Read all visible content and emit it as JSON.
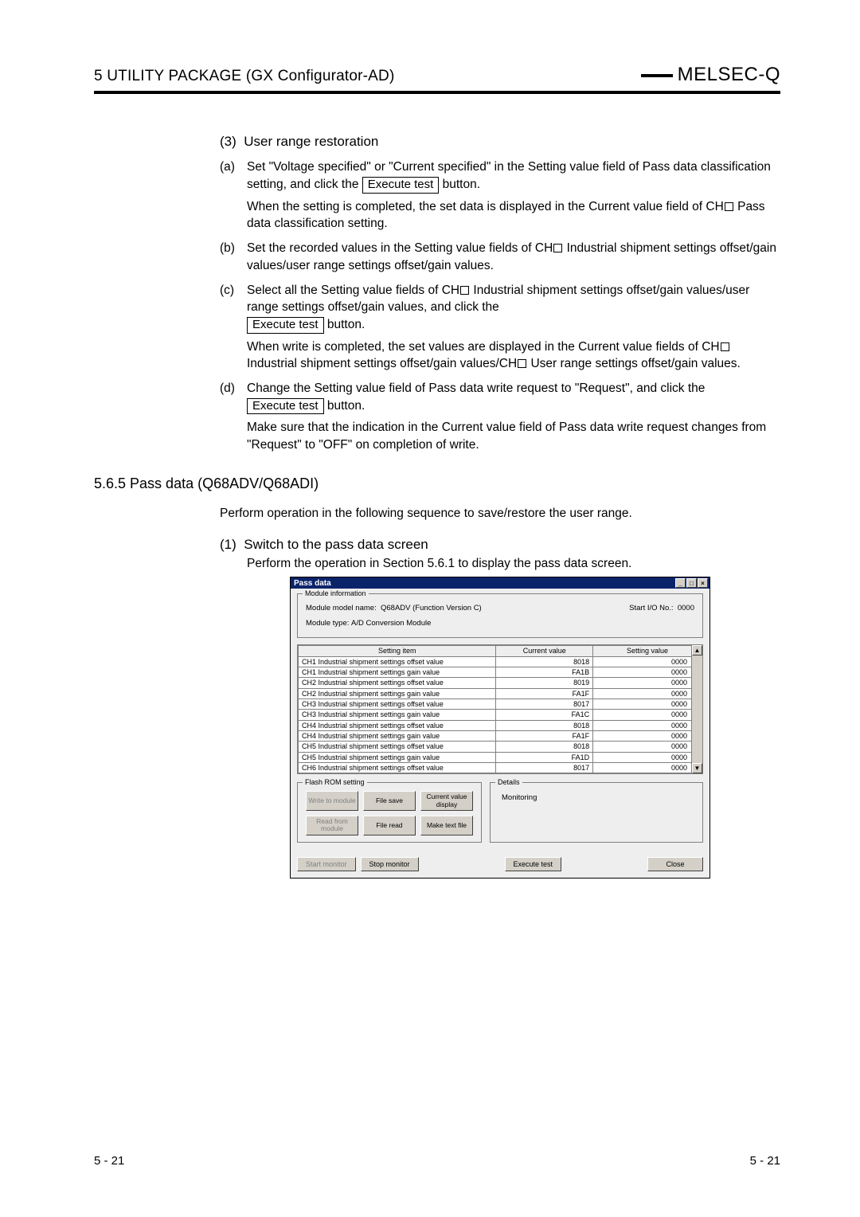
{
  "header": {
    "chapter": "5   UTILITY PACKAGE (GX Configurator-AD)",
    "brand": "MELSEC-Q"
  },
  "section3": {
    "num": "(3)",
    "title": "User range restoration",
    "a": {
      "lbl": "(a)",
      "p1a": "Set \"Voltage specified\" or \"Current specified\" in the Setting value field of Pass data classification setting, and click the ",
      "btn": "Execute test",
      "p1b": " button.",
      "p2a": "When the setting is completed, the set data is displayed in the Current value field of CH",
      "p2b": " Pass data classification setting."
    },
    "b": {
      "lbl": "(b)",
      "p1a": "Set the recorded values in the Setting value fields of CH",
      "p1b": " Industrial shipment settings offset/gain values/user range settings offset/gain values."
    },
    "c": {
      "lbl": "(c)",
      "p1a": "Select all the Setting value fields of CH",
      "p1b": " Industrial shipment settings offset/gain values/user range settings offset/gain values, and click the ",
      "btn": "Execute test",
      "p1c": " button.",
      "p2a": "When write is completed, the set values are displayed in the Current value fields of CH",
      "p2b": " Industrial shipment settings offset/gain values/CH",
      "p2c": " User range settings offset/gain values."
    },
    "d": {
      "lbl": "(d)",
      "p1a": "Change the Setting value field of Pass data write request to \"Request\", and click the ",
      "btn": "Execute test",
      "p1b": " button.",
      "p2": "Make sure that the indication in the Current value field of Pass data write request changes from \"Request\" to \"OFF\" on completion of write."
    }
  },
  "section565": {
    "heading": "5.6.5 Pass data (Q68ADV/Q68ADI)",
    "intro": "Perform operation in the following sequence to save/restore the user range.",
    "step1num": "(1)",
    "step1title": "Switch to the pass data screen",
    "step1text": "Perform the operation in Section 5.6.1 to display the pass data screen."
  },
  "dialog": {
    "title": "Pass data",
    "modinfo": {
      "grp": "Module information",
      "model_label": "Module model name:",
      "model": "Q68ADV (Function Version C)",
      "io_label": "Start I/O No.:",
      "io": "0000",
      "type_label": "Module type:",
      "type": "A/D Conversion Module"
    },
    "cols": {
      "c1": "Setting item",
      "c2": "Current value",
      "c3": "Setting value"
    },
    "rows": [
      {
        "item": "CH1 Industrial shipment settings offset value",
        "cur": "8018",
        "set": "0000"
      },
      {
        "item": "CH1 Industrial shipment settings gain value",
        "cur": "FA1B",
        "set": "0000"
      },
      {
        "item": "CH2 Industrial shipment settings offset value",
        "cur": "8019",
        "set": "0000"
      },
      {
        "item": "CH2 Industrial shipment settings gain value",
        "cur": "FA1F",
        "set": "0000"
      },
      {
        "item": "CH3 Industrial shipment settings offset value",
        "cur": "8017",
        "set": "0000"
      },
      {
        "item": "CH3 Industrial shipment settings gain value",
        "cur": "FA1C",
        "set": "0000"
      },
      {
        "item": "CH4 Industrial shipment settings offset value",
        "cur": "8018",
        "set": "0000"
      },
      {
        "item": "CH4 Industrial shipment settings gain value",
        "cur": "FA1F",
        "set": "0000"
      },
      {
        "item": "CH5 Industrial shipment settings offset value",
        "cur": "8018",
        "set": "0000"
      },
      {
        "item": "CH5 Industrial shipment settings gain value",
        "cur": "FA1D",
        "set": "0000"
      },
      {
        "item": "CH6 Industrial shipment settings offset value",
        "cur": "8017",
        "set": "0000"
      }
    ],
    "flash": {
      "grp": "Flash ROM setting",
      "write": "Write to module",
      "filesave": "File save",
      "curval": "Current value display",
      "read": "Read from module",
      "fileread": "File read",
      "maketxt": "Make text file"
    },
    "details": {
      "grp": "Details",
      "status": "Monitoring"
    },
    "bottom": {
      "start": "Start monitor",
      "stop": "Stop monitor",
      "exec": "Execute test",
      "close": "Close"
    }
  },
  "footer": {
    "left": "5 - 21",
    "right": "5 - 21"
  }
}
